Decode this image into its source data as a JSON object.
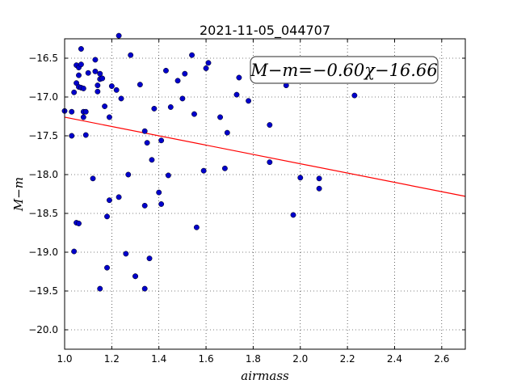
{
  "chart_data": {
    "type": "scatter",
    "title": "2021-11-05_044707",
    "xlabel": "airmass",
    "ylabel": "M−m",
    "xlim": [
      1.0,
      2.7
    ],
    "ylim": [
      -20.25,
      -16.25
    ],
    "y_inverted": true,
    "grid": true,
    "xticks": [
      1.0,
      1.2,
      1.4,
      1.6,
      1.8,
      2.0,
      2.2,
      2.4,
      2.6
    ],
    "xtick_labels": [
      "1.0",
      "1.2",
      "1.4",
      "1.6",
      "1.8",
      "2.0",
      "2.2",
      "2.4",
      "2.6"
    ],
    "yticks": [
      -16.5,
      -17.0,
      -17.5,
      -18.0,
      -18.5,
      -19.0,
      -19.5,
      -20.0
    ],
    "ytick_labels": [
      "−16.5",
      "−17.0",
      "−17.5",
      "−18.0",
      "−18.5",
      "−19.0",
      "−19.5",
      "−20.0"
    ],
    "points_color": "#0000cc",
    "fit_color": "#ff0000",
    "fit_line": {
      "slope": -0.6,
      "intercept": -16.66,
      "x_range": [
        1.0,
        2.7
      ]
    },
    "annotation": "M−m=−0.60χ−16.66",
    "points": [
      [
        1.0,
        -17.18
      ],
      [
        1.03,
        -17.19
      ],
      [
        1.03,
        -17.5
      ],
      [
        1.04,
        -16.94
      ],
      [
        1.05,
        -16.82
      ],
      [
        1.05,
        -16.59
      ],
      [
        1.06,
        -16.62
      ],
      [
        1.06,
        -16.72
      ],
      [
        1.06,
        -16.87
      ],
      [
        1.07,
        -16.88
      ],
      [
        1.07,
        -16.58
      ],
      [
        1.07,
        -16.38
      ],
      [
        1.08,
        -16.89
      ],
      [
        1.08,
        -17.19
      ],
      [
        1.08,
        -17.26
      ],
      [
        1.09,
        -17.19
      ],
      [
        1.09,
        -17.49
      ],
      [
        1.1,
        -16.69
      ],
      [
        1.05,
        -18.62
      ],
      [
        1.06,
        -18.63
      ],
      [
        1.04,
        -18.99
      ],
      [
        1.12,
        -18.05
      ],
      [
        1.13,
        -16.67
      ],
      [
        1.13,
        -16.52
      ],
      [
        1.14,
        -16.85
      ],
      [
        1.14,
        -16.93
      ],
      [
        1.15,
        -16.7
      ],
      [
        1.15,
        -16.77
      ],
      [
        1.16,
        -16.76
      ],
      [
        1.17,
        -17.12
      ],
      [
        1.19,
        -17.26
      ],
      [
        1.2,
        -16.86
      ],
      [
        1.22,
        -16.91
      ],
      [
        1.23,
        -16.21
      ],
      [
        1.24,
        -17.02
      ],
      [
        1.18,
        -18.54
      ],
      [
        1.19,
        -18.33
      ],
      [
        1.23,
        -18.29
      ],
      [
        1.27,
        -18.0
      ],
      [
        1.28,
        -16.46
      ],
      [
        1.32,
        -16.84
      ],
      [
        1.34,
        -17.44
      ],
      [
        1.35,
        -17.59
      ],
      [
        1.37,
        -17.81
      ],
      [
        1.38,
        -17.15
      ],
      [
        1.41,
        -17.56
      ],
      [
        1.43,
        -16.66
      ],
      [
        1.45,
        -17.13
      ],
      [
        1.44,
        -18.01
      ],
      [
        1.4,
        -18.23
      ],
      [
        1.41,
        -18.38
      ],
      [
        1.34,
        -18.4
      ],
      [
        1.48,
        -16.79
      ],
      [
        1.5,
        -17.02
      ],
      [
        1.51,
        -16.7
      ],
      [
        1.54,
        -16.46
      ],
      [
        1.55,
        -17.22
      ],
      [
        1.6,
        -16.63
      ],
      [
        1.61,
        -16.56
      ],
      [
        1.59,
        -17.95
      ],
      [
        1.56,
        -18.68
      ],
      [
        1.66,
        -17.26
      ],
      [
        1.68,
        -17.92
      ],
      [
        1.69,
        -17.46
      ],
      [
        1.73,
        -16.97
      ],
      [
        1.74,
        -16.75
      ],
      [
        1.78,
        -17.05
      ],
      [
        1.87,
        -17.36
      ],
      [
        1.87,
        -17.84
      ],
      [
        1.94,
        -16.85
      ],
      [
        1.97,
        -18.52
      ],
      [
        2.0,
        -18.04
      ],
      [
        2.08,
        -18.05
      ],
      [
        2.08,
        -18.18
      ],
      [
        2.23,
        -16.98
      ],
      [
        1.18,
        -19.2
      ],
      [
        1.15,
        -19.47
      ],
      [
        1.26,
        -19.02
      ],
      [
        1.3,
        -19.31
      ],
      [
        1.3,
        -19.31
      ],
      [
        1.34,
        -19.47
      ],
      [
        1.36,
        -19.08
      ]
    ]
  }
}
